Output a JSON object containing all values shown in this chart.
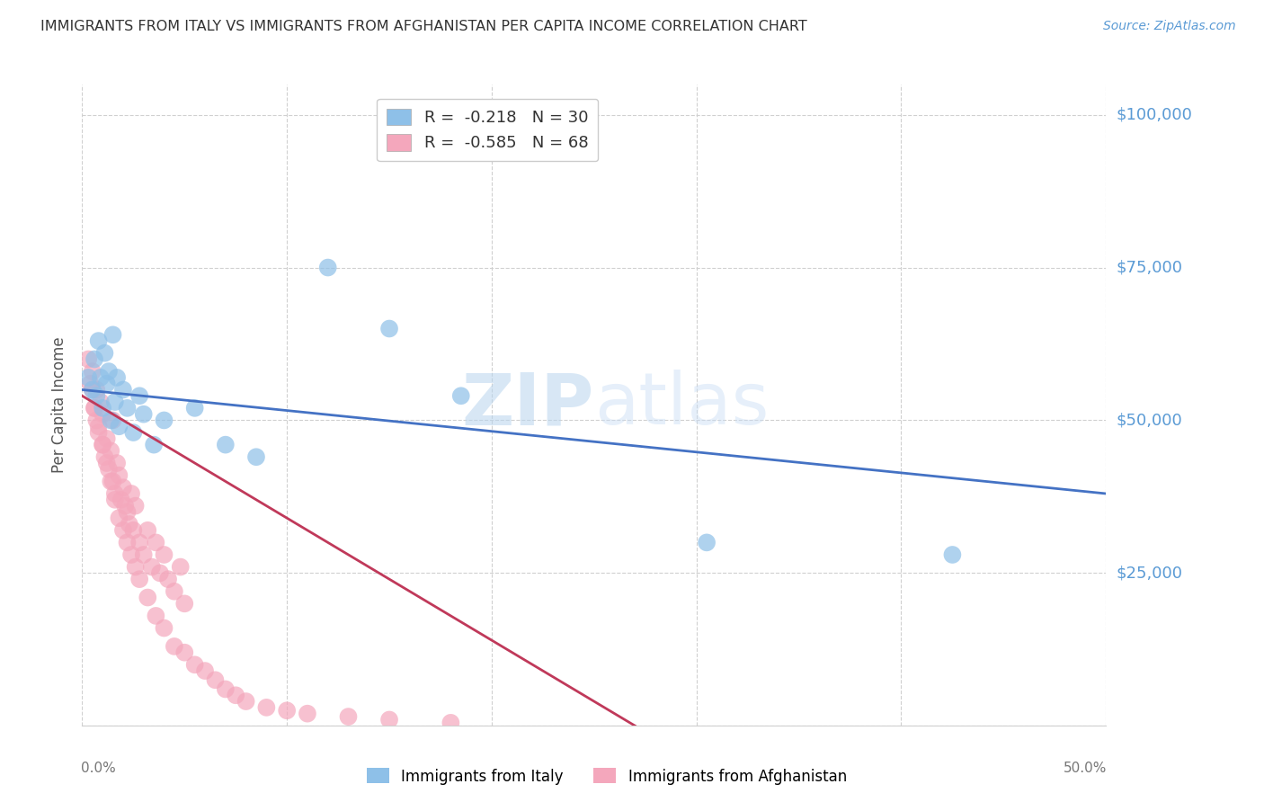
{
  "title": "IMMIGRANTS FROM ITALY VS IMMIGRANTS FROM AFGHANISTAN PER CAPITA INCOME CORRELATION CHART",
  "source": "Source: ZipAtlas.com",
  "ylabel": "Per Capita Income",
  "xlim": [
    0.0,
    0.5
  ],
  "ylim": [
    0,
    105000
  ],
  "yticks": [
    0,
    25000,
    50000,
    75000,
    100000
  ],
  "ytick_labels": [
    "",
    "$25,000",
    "$50,000",
    "$75,000",
    "$100,000"
  ],
  "italy_color": "#8ec0e8",
  "italy_color_line": "#4472c4",
  "afghanistan_color": "#f4a7bc",
  "afghanistan_color_line": "#c0395a",
  "italy_R": "-0.218",
  "italy_N": "30",
  "afghanistan_R": "-0.585",
  "afghanistan_N": "68",
  "watermark_zip": "ZIP",
  "watermark_atlas": "atlas",
  "italy_scatter_x": [
    0.003,
    0.005,
    0.006,
    0.007,
    0.008,
    0.009,
    0.01,
    0.011,
    0.012,
    0.013,
    0.014,
    0.015,
    0.016,
    0.017,
    0.018,
    0.02,
    0.022,
    0.025,
    0.028,
    0.03,
    0.035,
    0.04,
    0.055,
    0.07,
    0.085,
    0.12,
    0.15,
    0.185,
    0.305,
    0.425
  ],
  "italy_scatter_y": [
    57000,
    55000,
    60000,
    54000,
    63000,
    57000,
    52000,
    61000,
    56000,
    58000,
    50000,
    64000,
    53000,
    57000,
    49000,
    55000,
    52000,
    48000,
    54000,
    51000,
    46000,
    50000,
    52000,
    46000,
    44000,
    75000,
    65000,
    54000,
    30000,
    28000
  ],
  "afghanistan_scatter_x": [
    0.003,
    0.004,
    0.005,
    0.006,
    0.007,
    0.007,
    0.008,
    0.009,
    0.01,
    0.01,
    0.011,
    0.012,
    0.013,
    0.014,
    0.015,
    0.015,
    0.016,
    0.017,
    0.018,
    0.019,
    0.02,
    0.021,
    0.022,
    0.023,
    0.024,
    0.025,
    0.026,
    0.028,
    0.03,
    0.032,
    0.034,
    0.036,
    0.038,
    0.04,
    0.042,
    0.045,
    0.048,
    0.05,
    0.005,
    0.006,
    0.008,
    0.01,
    0.012,
    0.014,
    0.016,
    0.018,
    0.02,
    0.022,
    0.024,
    0.026,
    0.028,
    0.032,
    0.036,
    0.04,
    0.045,
    0.05,
    0.055,
    0.06,
    0.065,
    0.07,
    0.075,
    0.08,
    0.09,
    0.1,
    0.11,
    0.13,
    0.15,
    0.18
  ],
  "afghanistan_scatter_y": [
    60000,
    56000,
    58000,
    52000,
    50000,
    55000,
    48000,
    53000,
    46000,
    51000,
    44000,
    47000,
    42000,
    45000,
    40000,
    50000,
    38000,
    43000,
    41000,
    37000,
    39000,
    36000,
    35000,
    33000,
    38000,
    32000,
    36000,
    30000,
    28000,
    32000,
    26000,
    30000,
    25000,
    28000,
    24000,
    22000,
    26000,
    20000,
    55000,
    52000,
    49000,
    46000,
    43000,
    40000,
    37000,
    34000,
    32000,
    30000,
    28000,
    26000,
    24000,
    21000,
    18000,
    16000,
    13000,
    12000,
    10000,
    9000,
    7500,
    6000,
    5000,
    4000,
    3000,
    2500,
    2000,
    1500,
    1000,
    500
  ],
  "italy_line_x": [
    0.0,
    0.5
  ],
  "italy_line_y": [
    55000,
    38000
  ],
  "afghanistan_line_x": [
    0.0,
    0.27
  ],
  "afghanistan_line_y": [
    54000,
    0
  ],
  "background_color": "#ffffff",
  "grid_color": "#d0d0d0",
  "title_color": "#333333",
  "source_color": "#5b9bd5",
  "ylabel_color": "#555555",
  "tick_label_color": "#5b9bd5"
}
